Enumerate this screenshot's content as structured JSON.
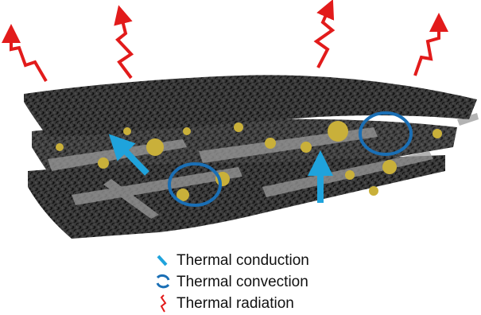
{
  "legend": {
    "items": [
      {
        "label": "Thermal conduction"
      },
      {
        "label": "Thermal convection"
      },
      {
        "label": "Thermal radiation"
      }
    ]
  }
}
